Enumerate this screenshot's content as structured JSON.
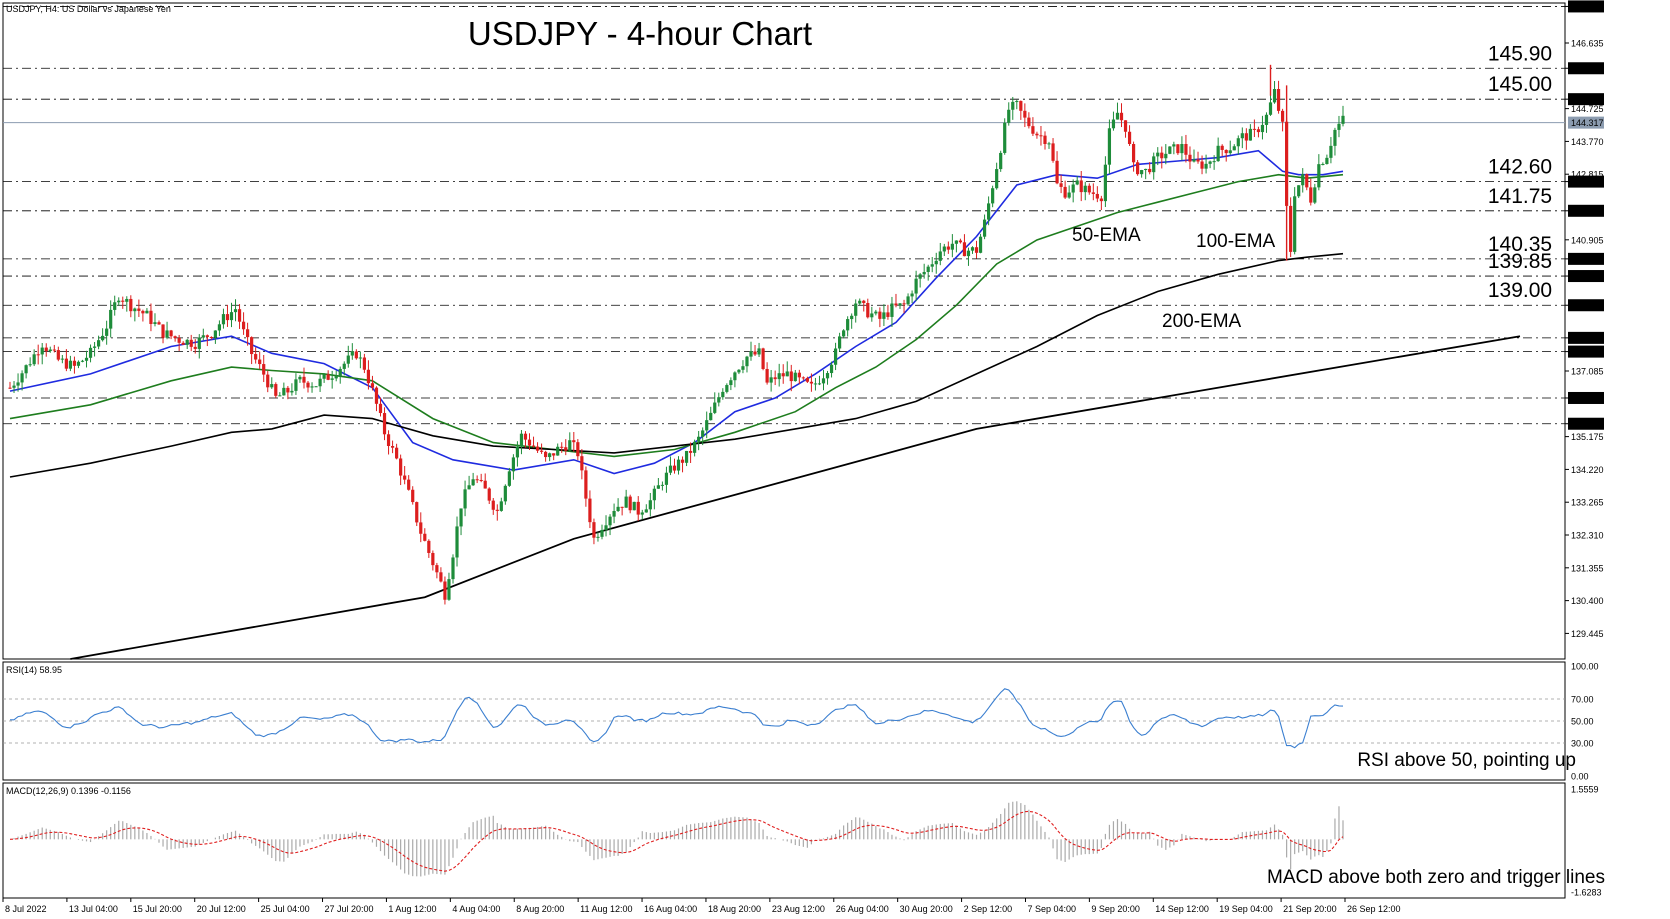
{
  "chart_data": [
    {
      "type": "candlestick",
      "panel": "price",
      "title": "USDJPY - 4-hour Chart",
      "corner_label": "USDJPY, H4: US Dollar vs Japanese Yen",
      "ylim": [
        128.7,
        147.8
      ],
      "axis_ticks": [
        "147.700",
        "146.635",
        "145.900",
        "145.000",
        "144.725",
        "143.770",
        "142.815",
        "142.600",
        "141.750",
        "140.905",
        "140.350",
        "139.850",
        "139.000",
        "138.050",
        "137.650",
        "137.085",
        "136.300",
        "135.550",
        "135.175",
        "134.220",
        "133.265",
        "132.310",
        "131.355",
        "130.400",
        "129.445"
      ],
      "current_price": "144.317",
      "x_ticks": [
        "8 Jul 2022",
        "13 Jul 04:00",
        "15 Jul 20:00",
        "20 Jul 12:00",
        "25 Jul 04:00",
        "27 Jul 20:00",
        "1 Aug 12:00",
        "4 Aug 04:00",
        "8 Aug 20:00",
        "11 Aug 12:00",
        "16 Aug 04:00",
        "18 Aug 20:00",
        "23 Aug 12:00",
        "26 Aug 04:00",
        "30 Aug 20:00",
        "2 Sep 12:00",
        "7 Sep 04:00",
        "9 Sep 20:00",
        "14 Sep 12:00",
        "19 Sep 04:00",
        "21 Sep 20:00",
        "26 Sep 12:00"
      ],
      "levels": [
        {
          "value": 147.7,
          "label": "147.70"
        },
        {
          "value": 145.9,
          "label": "145.90"
        },
        {
          "value": 145.0,
          "label": "145.00"
        },
        {
          "value": 142.6,
          "label": "142.60"
        },
        {
          "value": 141.75,
          "label": "141.75"
        },
        {
          "value": 140.35,
          "label": "140.35"
        },
        {
          "value": 139.85,
          "label": "139.85"
        },
        {
          "value": 139.0,
          "label": "139.00"
        },
        {
          "value": 138.05,
          "label": ""
        },
        {
          "value": 137.65,
          "label": ""
        },
        {
          "value": 136.3,
          "label": ""
        },
        {
          "value": 135.55,
          "label": ""
        }
      ],
      "close_path": [
        [
          0,
          136.6
        ],
        [
          4,
          137.2
        ],
        [
          8,
          137.9
        ],
        [
          12,
          137.4
        ],
        [
          16,
          137.2
        ],
        [
          20,
          137.6
        ],
        [
          24,
          138.4
        ],
        [
          27,
          139.3
        ],
        [
          30,
          139.0
        ],
        [
          34,
          138.7
        ],
        [
          38,
          138.2
        ],
        [
          42,
          138.0
        ],
        [
          46,
          137.9
        ],
        [
          50,
          138.2
        ],
        [
          53,
          138.6
        ],
        [
          56,
          138.9
        ],
        [
          58,
          138.2
        ],
        [
          60,
          137.6
        ],
        [
          63,
          137.0
        ],
        [
          66,
          136.3
        ],
        [
          69,
          136.5
        ],
        [
          72,
          136.8
        ],
        [
          76,
          136.7
        ],
        [
          80,
          137.0
        ],
        [
          83,
          137.3
        ],
        [
          86,
          137.6
        ],
        [
          88,
          137.2
        ],
        [
          90,
          136.5
        ],
        [
          93,
          135.3
        ],
        [
          96,
          134.5
        ],
        [
          99,
          133.5
        ],
        [
          102,
          132.4
        ],
        [
          105,
          131.5
        ],
        [
          108,
          130.6
        ],
        [
          110,
          131.8
        ],
        [
          112,
          133.2
        ],
        [
          115,
          134.0
        ],
        [
          118,
          133.6
        ],
        [
          121,
          133.0
        ],
        [
          124,
          134.3
        ],
        [
          127,
          135.2
        ],
        [
          130,
          134.9
        ],
        [
          133,
          134.5
        ],
        [
          136,
          134.8
        ],
        [
          139,
          135.0
        ],
        [
          141,
          134.7
        ],
        [
          143,
          133.4
        ],
        [
          145,
          132.2
        ],
        [
          147,
          132.6
        ],
        [
          150,
          133.1
        ],
        [
          153,
          133.3
        ],
        [
          156,
          133.0
        ],
        [
          159,
          133.3
        ],
        [
          162,
          133.9
        ],
        [
          165,
          134.3
        ],
        [
          168,
          134.6
        ],
        [
          171,
          135.1
        ],
        [
          174,
          135.8
        ],
        [
          177,
          136.6
        ],
        [
          180,
          137.1
        ],
        [
          183,
          137.5
        ],
        [
          186,
          137.6
        ],
        [
          188,
          136.7
        ],
        [
          190,
          136.9
        ],
        [
          193,
          137.0
        ],
        [
          196,
          136.8
        ],
        [
          199,
          136.6
        ],
        [
          202,
          137.0
        ],
        [
          205,
          137.6
        ],
        [
          207,
          138.4
        ],
        [
          210,
          139.1
        ],
        [
          213,
          138.8
        ],
        [
          216,
          138.6
        ],
        [
          219,
          138.9
        ],
        [
          222,
          139.0
        ],
        [
          225,
          139.7
        ],
        [
          228,
          140.1
        ],
        [
          231,
          140.6
        ],
        [
          234,
          140.8
        ],
        [
          237,
          140.6
        ],
        [
          240,
          140.6
        ],
        [
          242,
          141.4
        ],
        [
          244,
          142.5
        ],
        [
          246,
          143.6
        ],
        [
          248,
          144.7
        ],
        [
          250,
          144.8
        ],
        [
          252,
          144.4
        ],
        [
          255,
          144.0
        ],
        [
          258,
          143.8
        ],
        [
          260,
          142.5
        ],
        [
          262,
          142.3
        ],
        [
          265,
          142.5
        ],
        [
          268,
          142.3
        ],
        [
          271,
          142.2
        ],
        [
          273,
          144.0
        ],
        [
          275,
          144.6
        ],
        [
          277,
          144.2
        ],
        [
          279,
          143.0
        ],
        [
          282,
          142.9
        ],
        [
          285,
          143.3
        ],
        [
          288,
          143.5
        ],
        [
          291,
          143.6
        ],
        [
          294,
          143.1
        ],
        [
          297,
          143.1
        ],
        [
          300,
          143.5
        ],
        [
          303,
          143.6
        ],
        [
          306,
          143.9
        ],
        [
          309,
          144.0
        ],
        [
          312,
          144.5
        ],
        [
          314,
          145.2
        ],
        [
          316,
          144.2
        ],
        [
          317,
          141.8
        ],
        [
          318,
          140.6
        ],
        [
          319,
          142.3
        ],
        [
          321,
          142.7
        ],
        [
          323,
          142.1
        ],
        [
          325,
          143.1
        ],
        [
          327,
          143.4
        ],
        [
          329,
          144.1
        ],
        [
          331,
          144.4
        ]
      ],
      "series": [
        {
          "name": "50-EMA",
          "color": "#1f2be0",
          "values": [
            [
              0,
              136.5
            ],
            [
              20,
              137.0
            ],
            [
              40,
              137.8
            ],
            [
              55,
              138.1
            ],
            [
              65,
              137.6
            ],
            [
              78,
              137.3
            ],
            [
              90,
              136.6
            ],
            [
              100,
              135.0
            ],
            [
              110,
              134.5
            ],
            [
              125,
              134.2
            ],
            [
              140,
              134.5
            ],
            [
              150,
              134.1
            ],
            [
              160,
              134.4
            ],
            [
              170,
              135.0
            ],
            [
              180,
              135.9
            ],
            [
              190,
              136.3
            ],
            [
              200,
              137.0
            ],
            [
              210,
              137.8
            ],
            [
              220,
              138.5
            ],
            [
              230,
              139.8
            ],
            [
              240,
              141.0
            ],
            [
              250,
              142.5
            ],
            [
              260,
              142.8
            ],
            [
              270,
              142.7
            ],
            [
              280,
              143.1
            ],
            [
              290,
              143.2
            ],
            [
              300,
              143.3
            ],
            [
              310,
              143.5
            ],
            [
              316,
              142.9
            ],
            [
              320,
              142.8
            ],
            [
              326,
              142.8
            ],
            [
              331,
              142.9
            ]
          ]
        },
        {
          "name": "100-EMA",
          "color": "#1e7d1e",
          "values": [
            [
              0,
              135.7
            ],
            [
              20,
              136.1
            ],
            [
              40,
              136.8
            ],
            [
              55,
              137.2
            ],
            [
              65,
              137.1
            ],
            [
              78,
              137.0
            ],
            [
              90,
              136.8
            ],
            [
              105,
              135.7
            ],
            [
              120,
              135.0
            ],
            [
              135,
              134.8
            ],
            [
              150,
              134.6
            ],
            [
              165,
              134.8
            ],
            [
              180,
              135.3
            ],
            [
              195,
              135.9
            ],
            [
              205,
              136.6
            ],
            [
              215,
              137.2
            ],
            [
              225,
              138.0
            ],
            [
              235,
              139.0
            ],
            [
              245,
              140.2
            ],
            [
              255,
              140.9
            ],
            [
              265,
              141.3
            ],
            [
              275,
              141.7
            ],
            [
              285,
              142.0
            ],
            [
              295,
              142.3
            ],
            [
              305,
              142.6
            ],
            [
              315,
              142.8
            ],
            [
              322,
              142.7
            ],
            [
              331,
              142.8
            ]
          ]
        },
        {
          "name": "200-EMA",
          "color": "#000000",
          "values": [
            [
              0,
              134.0
            ],
            [
              20,
              134.4
            ],
            [
              40,
              134.9
            ],
            [
              55,
              135.3
            ],
            [
              65,
              135.4
            ],
            [
              78,
              135.8
            ],
            [
              90,
              135.7
            ],
            [
              105,
              135.2
            ],
            [
              120,
              134.9
            ],
            [
              135,
              134.8
            ],
            [
              150,
              134.7
            ],
            [
              165,
              134.9
            ],
            [
              180,
              135.1
            ],
            [
              195,
              135.4
            ],
            [
              210,
              135.7
            ],
            [
              225,
              136.2
            ],
            [
              240,
              137.0
            ],
            [
              255,
              137.8
            ],
            [
              270,
              138.7
            ],
            [
              285,
              139.4
            ],
            [
              300,
              139.9
            ],
            [
              315,
              140.3
            ],
            [
              322,
              140.4
            ],
            [
              331,
              140.5
            ]
          ]
        },
        {
          "name": "trendline",
          "color": "#000000",
          "values": [
            [
              15,
              128.7
            ],
            [
              103,
              130.5
            ],
            [
              140,
              132.2
            ],
            [
              240,
              135.4
            ],
            [
              331,
              138.1
            ]
          ]
        }
      ],
      "labels": [
        {
          "text": "50-EMA",
          "color": "#1f2be0"
        },
        {
          "text": "100-EMA",
          "color": "#1e7d1e"
        },
        {
          "text": "200-EMA",
          "color": "#000000"
        }
      ]
    },
    {
      "type": "line",
      "panel": "rsi",
      "label": "RSI(14) 58.95",
      "axis_ticks": [
        "100.00",
        "70.00",
        "50.00",
        "30.00",
        "0.00"
      ],
      "levels": [
        70,
        50,
        30
      ],
      "ylim": [
        0,
        100
      ],
      "series": [
        {
          "color": "#3b7fd0"
        }
      ],
      "annotation": "RSI above 50, pointing up"
    },
    {
      "type": "bar",
      "panel": "macd",
      "label": "MACD(12,26,9) 0.1396 -0.1156",
      "axis_ticks": [
        "1.5559",
        "-1.6283"
      ],
      "ylim": [
        -1.6283,
        1.5559
      ],
      "series": [
        {
          "name": "histogram",
          "color": "#aaaaaa"
        },
        {
          "name": "signal",
          "color": "#e02020"
        }
      ],
      "annotation": "MACD above both zero and trigger lines"
    }
  ]
}
